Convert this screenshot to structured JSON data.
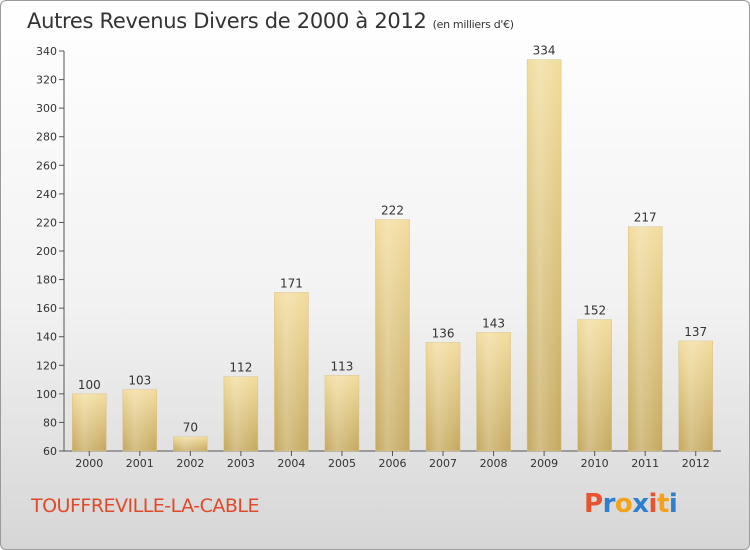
{
  "header": {
    "title": "Autres Revenus Divers de 2000 à 2012",
    "subtitle": "(en milliers d'€)"
  },
  "footer": {
    "town": "TOUFFREVILLE-LA-CABLE"
  },
  "logo": {
    "letters": [
      "P",
      "r",
      "o",
      "x",
      "i",
      "t",
      "i"
    ],
    "colors": [
      "#e8522e",
      "#2f7fd0",
      "#f2a31b",
      "#2f7fd0",
      "#e8522e",
      "#f2a31b",
      "#2f7fd0"
    ]
  },
  "chart_data": {
    "type": "bar",
    "title": "Autres Revenus Divers de 2000 à 2012",
    "subtitle": "(en milliers d'€)",
    "categories": [
      "2000",
      "2001",
      "2002",
      "2003",
      "2004",
      "2005",
      "2006",
      "2007",
      "2008",
      "2009",
      "2010",
      "2011",
      "2012"
    ],
    "values": [
      100,
      103,
      70,
      112,
      171,
      113,
      222,
      136,
      143,
      334,
      152,
      217,
      137
    ],
    "ylim": [
      60,
      340
    ],
    "yticks": [
      60,
      80,
      100,
      120,
      140,
      160,
      180,
      200,
      220,
      240,
      260,
      280,
      300,
      320,
      340
    ],
    "grid": false,
    "bar_color": "#e2c57a"
  }
}
